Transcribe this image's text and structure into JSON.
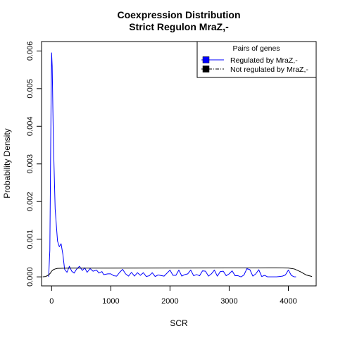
{
  "chart_data": {
    "type": "line",
    "title": "Coexpression Distribution",
    "subtitle": "Strict Regulon MraZ,-",
    "xlabel": "SCR",
    "ylabel": "Probability Density",
    "xlim": [
      -170,
      4470
    ],
    "ylim": [
      -0.00024,
      0.00625
    ],
    "x_ticks": [
      0,
      1000,
      2000,
      3000,
      4000
    ],
    "x_tick_labels": [
      "0",
      "1000",
      "2000",
      "3000",
      "4000"
    ],
    "y_ticks": [
      0.0,
      0.001,
      0.002,
      0.003,
      0.004,
      0.005,
      0.006
    ],
    "y_tick_labels": [
      "0.000",
      "0.001",
      "0.002",
      "0.003",
      "0.004",
      "0.005",
      "0.006"
    ],
    "grid": false,
    "legend": {
      "title": "Pairs of genes",
      "placement": "top-right",
      "entries": [
        "Regulated by  MraZ,-",
        "Not regulated by  MraZ,-"
      ]
    },
    "series": [
      {
        "name": "Regulated by  MraZ,-",
        "color": "#0000ff",
        "x": [
          -50,
          -30,
          -10,
          0,
          10,
          30,
          60,
          100,
          130,
          160,
          190,
          220,
          260,
          300,
          340,
          380,
          420,
          470,
          520,
          560,
          600,
          650,
          700,
          760,
          800,
          850,
          880,
          950,
          1000,
          1050,
          1100,
          1150,
          1200,
          1250,
          1300,
          1350,
          1400,
          1450,
          1500,
          1550,
          1600,
          1650,
          1700,
          1750,
          1800,
          1900,
          2000,
          2050,
          2100,
          2150,
          2200,
          2250,
          2300,
          2350,
          2400,
          2450,
          2500,
          2550,
          2600,
          2650,
          2700,
          2750,
          2800,
          2850,
          2900,
          2950,
          3000,
          3050,
          3100,
          3150,
          3200,
          3250,
          3300,
          3350,
          3400,
          3450,
          3500,
          3550,
          3600,
          3650,
          3700,
          3800,
          3900,
          3950,
          4000,
          4050,
          4100,
          4130
        ],
        "y": [
          0.0,
          0.0007,
          0.0045,
          0.00595,
          0.0056,
          0.0036,
          0.0018,
          0.00095,
          0.0008,
          0.00088,
          0.0006,
          0.0002,
          0.00012,
          0.00028,
          0.00015,
          0.0001,
          0.0002,
          0.00028,
          0.00017,
          0.00024,
          0.00012,
          0.00022,
          0.00015,
          0.00018,
          0.0001,
          0.00014,
          6e-05,
          8e-05,
          8e-05,
          3e-05,
          2e-05,
          0.00012,
          0.0002,
          8e-05,
          2e-05,
          0.00012,
          2e-05,
          0.00011,
          4e-05,
          0.00011,
          1e-05,
          3e-05,
          0.00011,
          1e-05,
          5e-05,
          2e-05,
          0.00018,
          4e-05,
          4e-05,
          0.00018,
          2e-05,
          6e-05,
          8e-05,
          0.00018,
          3e-05,
          6e-05,
          3e-05,
          0.00016,
          0.00015,
          2e-05,
          8e-05,
          0.00018,
          2e-05,
          0.00014,
          0.00015,
          3e-05,
          8e-05,
          0.00016,
          3e-05,
          3e-05,
          0.0,
          5e-05,
          0.00022,
          0.00019,
          2e-05,
          8e-05,
          0.00019,
          1e-05,
          4e-05,
          0.0,
          0.0,
          0.0,
          2e-05,
          5e-05,
          0.00018,
          4e-05,
          0.0,
          0.0
        ]
      },
      {
        "name": "Not regulated by  MraZ,-",
        "color": "#000000",
        "x": [
          -150,
          -100,
          -50,
          -20,
          0,
          30,
          60,
          100,
          150,
          200,
          300,
          500,
          1000,
          2000,
          3000,
          3500,
          3800,
          4000,
          4100,
          4200,
          4300,
          4400
        ],
        "y": [
          0.0,
          1e-05,
          5e-05,
          0.0001,
          0.00015,
          0.00019,
          0.00021,
          0.000225,
          0.000228,
          0.00023,
          0.000232,
          0.000233,
          0.000233,
          0.000234,
          0.000236,
          0.000238,
          0.00024,
          0.000235,
          0.00021,
          0.00014,
          5e-05,
          1e-05
        ]
      }
    ]
  }
}
